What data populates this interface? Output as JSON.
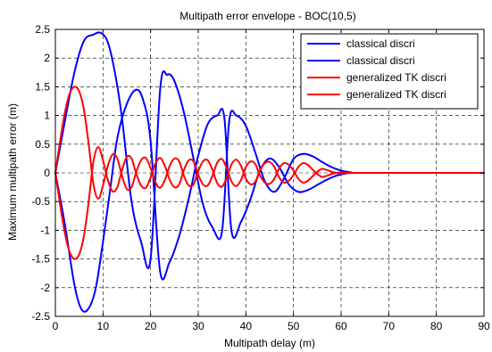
{
  "chart_data": {
    "type": "line",
    "title": "Multipath error envelope - BOC(10,5)",
    "xlabel": "Multipath delay (m)",
    "ylabel": "Maximum multipath error (m)",
    "xlim": [
      0,
      90
    ],
    "ylim": [
      -2.5,
      2.5
    ],
    "xticks": [
      0,
      10,
      20,
      30,
      40,
      50,
      60,
      70,
      80,
      90
    ],
    "xtick_labels": [
      "0",
      "10",
      "20",
      "30",
      "40",
      "50",
      "60",
      "70",
      "80",
      "90"
    ],
    "yticks": [
      -2.5,
      -2,
      -1.5,
      -1,
      -0.5,
      0,
      0.5,
      1,
      1.5,
      2,
      2.5
    ],
    "ytick_labels": [
      "-2.5",
      "-2",
      "-1.5",
      "-1",
      "-0.5",
      "0",
      "0.5",
      "1",
      "1.5",
      "2",
      "2.5"
    ],
    "grid": true,
    "grid_style": "dashed",
    "legend_position": "top-right",
    "series": [
      {
        "name": "classical discri",
        "color": "#0000ff",
        "x": [
          0,
          2,
          4,
          6,
          8,
          9.5,
          11,
          12.5,
          14,
          16,
          18,
          20,
          22,
          23.5,
          25,
          27,
          29,
          31,
          33,
          35,
          36.5,
          38,
          40,
          42,
          44,
          46,
          48,
          50,
          52,
          54,
          56,
          58,
          60,
          62,
          63,
          70,
          80,
          90
        ],
        "y": [
          0,
          0.9,
          1.75,
          2.3,
          2.41,
          2.44,
          2.28,
          1.75,
          0.95,
          -0.5,
          -1.2,
          -1.5,
          1.45,
          1.71,
          1.6,
          1.05,
          0.25,
          -0.55,
          -0.95,
          -1.02,
          0.9,
          1.0,
          0.82,
          0.35,
          -0.15,
          -0.33,
          -0.1,
          0.24,
          0.33,
          0.29,
          0.19,
          0.1,
          0.04,
          0.01,
          0,
          0,
          0,
          0
        ]
      },
      {
        "name": "classical discri",
        "color": "#0000ff",
        "x": [
          0,
          2,
          4,
          5.5,
          7,
          8.5,
          10,
          11.5,
          13,
          15,
          17,
          18.5,
          20,
          22,
          24,
          26,
          28,
          30,
          32,
          34,
          35.5,
          37,
          39,
          41,
          43,
          45,
          47,
          49,
          51,
          53,
          55,
          57,
          59,
          61,
          63,
          70,
          80,
          90
        ],
        "y": [
          0,
          -0.9,
          -1.95,
          -2.38,
          -2.36,
          -2.0,
          -1.2,
          -0.3,
          0.6,
          1.2,
          1.45,
          1.25,
          0.55,
          -1.72,
          -1.55,
          -1.1,
          -0.45,
          0.3,
          0.85,
          1.0,
          0.95,
          -1.02,
          -0.85,
          -0.45,
          0.05,
          0.25,
          0.1,
          -0.2,
          -0.33,
          -0.3,
          -0.21,
          -0.12,
          -0.05,
          -0.01,
          0,
          0,
          0,
          0
        ]
      },
      {
        "name": "generalized TK discri",
        "color": "#ff0000",
        "x": [
          0,
          1,
          2,
          3,
          4,
          5,
          6,
          7,
          8,
          9,
          10,
          11,
          12,
          13,
          14,
          15,
          16,
          17,
          18,
          19,
          20,
          21,
          22,
          23,
          24,
          25,
          26,
          27,
          28,
          29,
          30,
          31,
          32,
          33,
          34,
          35,
          36,
          37,
          38,
          39,
          40,
          41,
          42,
          43,
          44,
          45,
          46,
          47,
          48,
          49,
          50,
          51,
          52,
          53,
          54,
          55,
          56,
          57,
          58,
          59,
          60,
          61,
          62,
          63,
          70,
          80,
          90
        ],
        "y": [
          0,
          0.55,
          1.05,
          1.38,
          1.5,
          1.42,
          1.1,
          0.5,
          -0.2,
          -0.45,
          -0.22,
          0.12,
          0.32,
          0.25,
          -0.05,
          -0.28,
          -0.25,
          0.02,
          0.22,
          0.26,
          0.08,
          -0.16,
          -0.26,
          -0.12,
          0.12,
          0.25,
          0.2,
          -0.05,
          -0.22,
          -0.2,
          0.03,
          0.2,
          0.22,
          0.05,
          -0.18,
          -0.24,
          -0.08,
          0.15,
          0.23,
          0.12,
          -0.1,
          -0.2,
          -0.15,
          0.05,
          0.17,
          0.19,
          0.1,
          -0.08,
          -0.17,
          -0.14,
          -0.04,
          0.1,
          0.17,
          0.14,
          0.06,
          -0.02,
          -0.07,
          -0.05,
          -0.02,
          0.0,
          0.01,
          0.0,
          0,
          0,
          0,
          0,
          0
        ]
      },
      {
        "name": "generalized TK discri",
        "color": "#ff0000",
        "x": [
          0,
          1,
          2,
          3,
          4,
          5,
          6,
          7,
          8,
          9,
          10,
          11,
          12,
          13,
          14,
          15,
          16,
          17,
          18,
          19,
          20,
          21,
          22,
          23,
          24,
          25,
          26,
          27,
          28,
          29,
          30,
          31,
          32,
          33,
          34,
          35,
          36,
          37,
          38,
          39,
          40,
          41,
          42,
          43,
          44,
          45,
          46,
          47,
          48,
          49,
          50,
          51,
          52,
          53,
          54,
          55,
          56,
          57,
          58,
          59,
          60,
          61,
          62,
          63,
          70,
          80,
          90
        ],
        "y": [
          0,
          -0.55,
          -1.05,
          -1.38,
          -1.5,
          -1.42,
          -1.1,
          -0.5,
          0.2,
          0.45,
          0.22,
          -0.12,
          -0.32,
          -0.25,
          0.05,
          0.28,
          0.25,
          -0.02,
          -0.22,
          -0.26,
          -0.08,
          0.16,
          0.26,
          0.12,
          -0.12,
          -0.25,
          -0.2,
          0.05,
          0.22,
          0.2,
          -0.03,
          -0.2,
          -0.22,
          -0.05,
          0.18,
          0.24,
          0.08,
          -0.15,
          -0.23,
          -0.12,
          0.1,
          0.2,
          0.15,
          -0.05,
          -0.17,
          -0.19,
          -0.1,
          0.08,
          0.17,
          0.14,
          0.04,
          -0.1,
          -0.17,
          -0.14,
          -0.06,
          0.02,
          0.07,
          0.05,
          0.02,
          0.0,
          -0.01,
          0.0,
          0,
          0,
          0,
          0,
          0
        ]
      }
    ]
  }
}
